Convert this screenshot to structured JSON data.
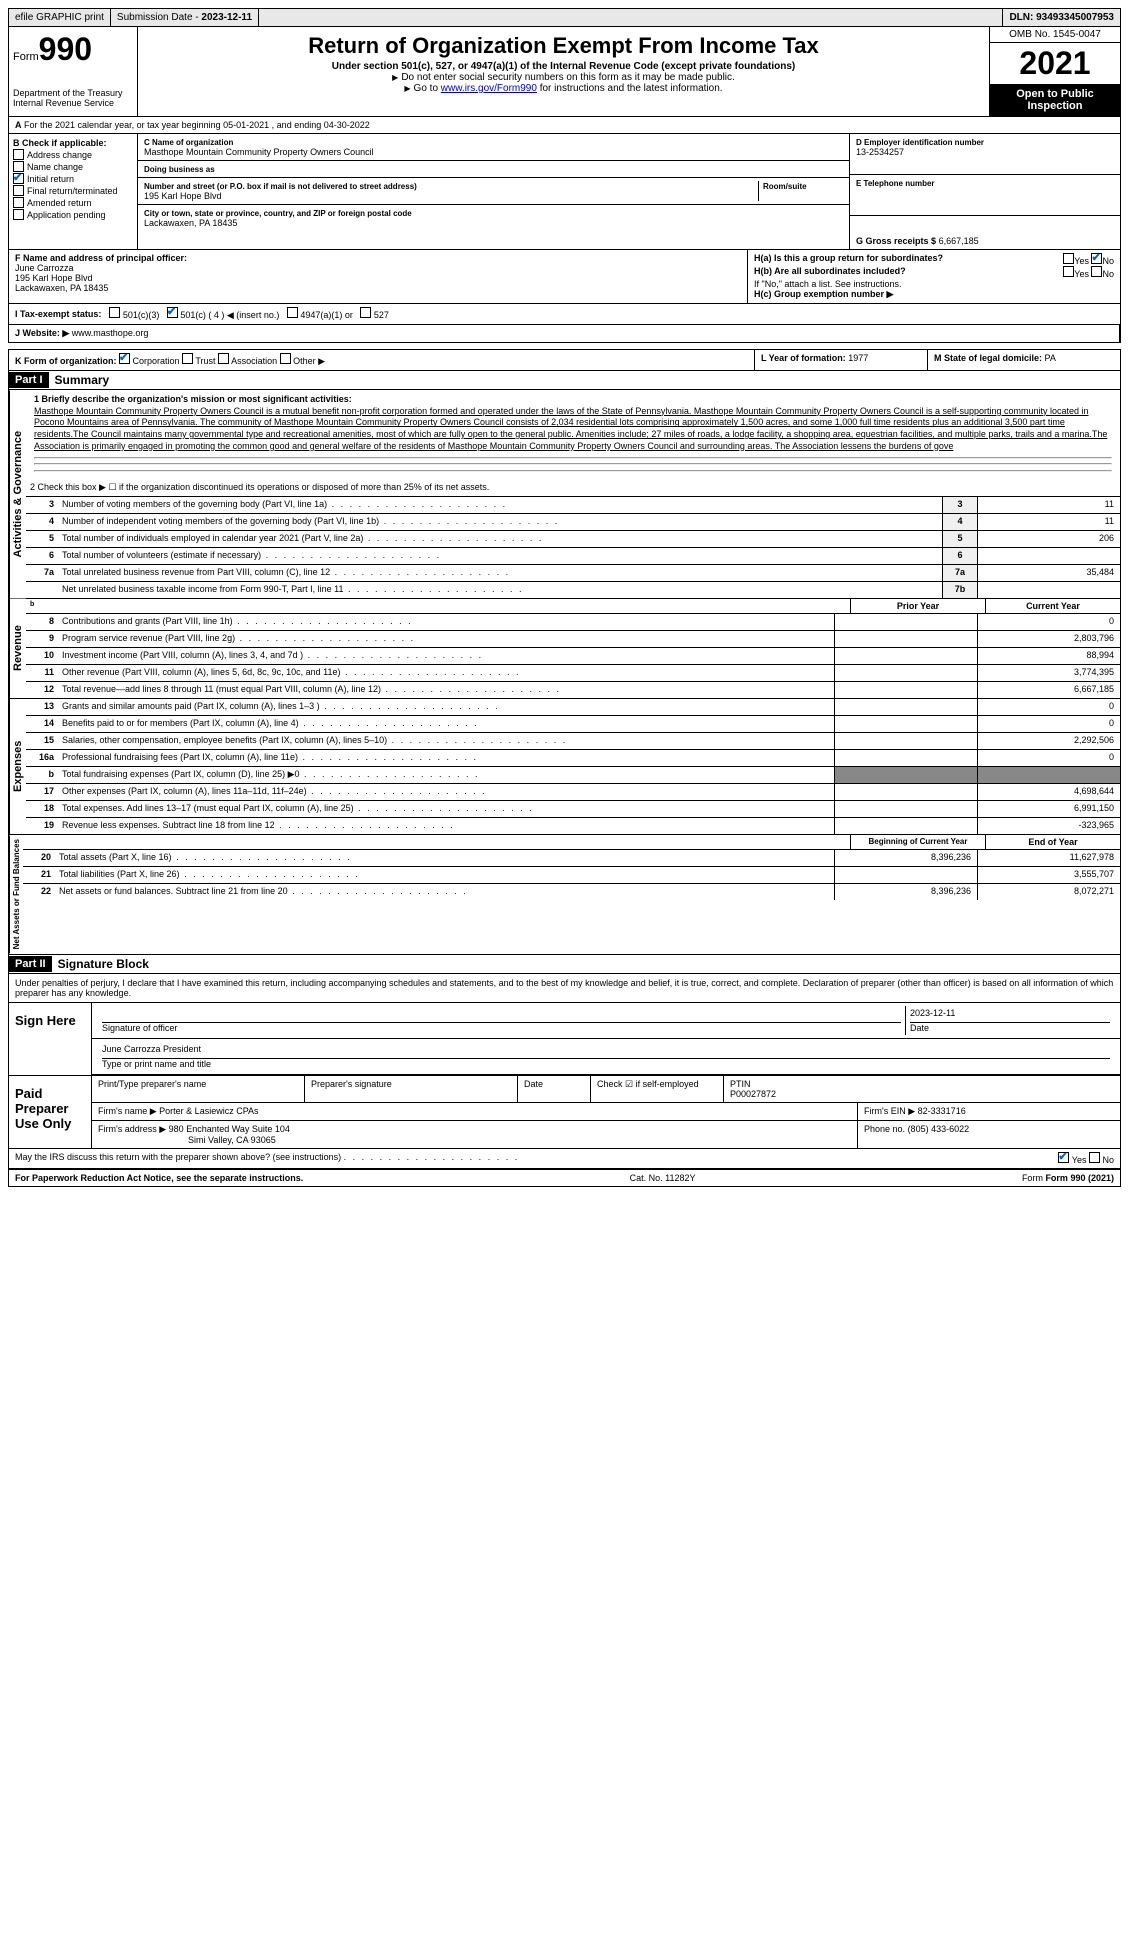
{
  "top": {
    "efile": "efile GRAPHIC print",
    "submission_label": "Submission Date - ",
    "submission_date": "2023-12-11",
    "dln_label": "DLN: ",
    "dln": "93493345007953"
  },
  "header": {
    "form_label": "Form",
    "form_num": "990",
    "dept": "Department of the Treasury",
    "irs": "Internal Revenue Service",
    "title": "Return of Organization Exempt From Income Tax",
    "subtitle": "Under section 501(c), 527, or 4947(a)(1) of the Internal Revenue Code (except private foundations)",
    "note1": "Do not enter social security numbers on this form as it may be made public.",
    "note2_pre": "Go to ",
    "note2_link": "www.irs.gov/Form990",
    "note2_post": " for instructions and the latest information.",
    "omb": "OMB No. 1545-0047",
    "year": "2021",
    "inspection": "Open to Public Inspection"
  },
  "section_a": "For the 2021 calendar year, or tax year beginning 05-01-2021  , and ending 04-30-2022",
  "section_b": {
    "label": "B Check if applicable:",
    "items": [
      "Address change",
      "Name change",
      "Initial return",
      "Final return/terminated",
      "Amended return",
      "Application pending"
    ],
    "checked_idx": 2
  },
  "section_c": {
    "name_label": "C Name of organization",
    "name": "Masthope Mountain Community Property Owners Council",
    "dba_label": "Doing business as",
    "dba": "",
    "street_label": "Number and street (or P.O. box if mail is not delivered to street address)",
    "street": "195 Karl Hope Blvd",
    "room_label": "Room/suite",
    "city_label": "City or town, state or province, country, and ZIP or foreign postal code",
    "city": "Lackawaxen, PA  18435"
  },
  "section_d": {
    "ein_label": "D Employer identification number",
    "ein": "13-2534257",
    "phone_label": "E Telephone number",
    "phone": "",
    "receipts_label": "G Gross receipts $",
    "receipts": "6,667,185"
  },
  "section_f": {
    "label": "F  Name and address of principal officer:",
    "name": "June Carrozza",
    "street": "195 Karl Hope Blvd",
    "city": "Lackawaxen, PA  18435"
  },
  "section_h": {
    "ha_label": "H(a)  Is this a group return for subordinates?",
    "ha_yes": "Yes",
    "ha_no": "No",
    "hb_label": "H(b)  Are all subordinates included?",
    "hb_note": "If \"No,\" attach a list. See instructions.",
    "hc_label": "H(c)  Group exemption number ▶"
  },
  "section_i": {
    "label": "I   Tax-exempt status:",
    "opts": [
      "501(c)(3)",
      "501(c) ( 4 ) ◀ (insert no.)",
      "4947(a)(1) or",
      "527"
    ],
    "checked_idx": 1
  },
  "section_j": {
    "label": "J   Website: ▶",
    "value": "www.masthope.org"
  },
  "section_k": {
    "label": "K Form of organization:",
    "opts": [
      "Corporation",
      "Trust",
      "Association",
      "Other ▶"
    ],
    "checked_idx": 0,
    "l_label": "L Year of formation:",
    "l_value": "1977",
    "m_label": "M State of legal domicile:",
    "m_value": "PA"
  },
  "part1": {
    "header": "Part I",
    "title": "Summary",
    "line1_label": "1   Briefly describe the organization's mission or most significant activities:",
    "mission": "Masthope Mountain Community Property Owners Council is a mutual benefit non-profit corporation formed and operated under the laws of the State of Pennsylvania. Masthope Mountain Community Property Owners Council is a self-supporting community located in Pocono Mountains area of Pennsylvania. The community of Masthope Mountain Community Property Owners Council consists of 2,034 residential lots comprising approximately 1,500 acres, and some 1,000 full time residents plus an additional 3,500 part time residents.The Council maintains many governmental type and recreational amenities, most of which are fully open to the general public. Amenities include; 27 miles of roads, a lodge facility, a shopping area, equestrian facilities, and multiple parks, trails and a marina.The Association is primarily engaged in promoting the common good and general welfare of the residents of Masthope Mountain Community Property Owners Council and surrounding areas. The Association lessens the burdens of gove",
    "line2": "2   Check this box ▶ ☐ if the organization discontinued its operations or disposed of more than 25% of its net assets.",
    "gov_label": "Activities & Governance",
    "rev_label": "Revenue",
    "exp_label": "Expenses",
    "net_label": "Net Assets or Fund Balances",
    "prior_year": "Prior Year",
    "current_year": "Current Year",
    "begin_year": "Beginning of Current Year",
    "end_year": "End of Year",
    "lines_gov": [
      {
        "n": "3",
        "d": "Number of voting members of the governing body (Part VI, line 1a)",
        "b": "3",
        "v": "11"
      },
      {
        "n": "4",
        "d": "Number of independent voting members of the governing body (Part VI, line 1b)",
        "b": "4",
        "v": "11"
      },
      {
        "n": "5",
        "d": "Total number of individuals employed in calendar year 2021 (Part V, line 2a)",
        "b": "5",
        "v": "206"
      },
      {
        "n": "6",
        "d": "Total number of volunteers (estimate if necessary)",
        "b": "6",
        "v": ""
      },
      {
        "n": "7a",
        "d": "Total unrelated business revenue from Part VIII, column (C), line 12",
        "b": "7a",
        "v": "35,484"
      },
      {
        "n": "",
        "d": "Net unrelated business taxable income from Form 990-T, Part I, line 11",
        "b": "7b",
        "v": ""
      }
    ],
    "lines_rev": [
      {
        "n": "8",
        "d": "Contributions and grants (Part VIII, line 1h)",
        "p": "",
        "c": "0"
      },
      {
        "n": "9",
        "d": "Program service revenue (Part VIII, line 2g)",
        "p": "",
        "c": "2,803,796"
      },
      {
        "n": "10",
        "d": "Investment income (Part VIII, column (A), lines 3, 4, and 7d )",
        "p": "",
        "c": "88,994"
      },
      {
        "n": "11",
        "d": "Other revenue (Part VIII, column (A), lines 5, 6d, 8c, 9c, 10c, and 11e)",
        "p": "",
        "c": "3,774,395"
      },
      {
        "n": "12",
        "d": "Total revenue—add lines 8 through 11 (must equal Part VIII, column (A), line 12)",
        "p": "",
        "c": "6,667,185"
      }
    ],
    "lines_exp": [
      {
        "n": "13",
        "d": "Grants and similar amounts paid (Part IX, column (A), lines 1–3 )",
        "p": "",
        "c": "0"
      },
      {
        "n": "14",
        "d": "Benefits paid to or for members (Part IX, column (A), line 4)",
        "p": "",
        "c": "0"
      },
      {
        "n": "15",
        "d": "Salaries, other compensation, employee benefits (Part IX, column (A), lines 5–10)",
        "p": "",
        "c": "2,292,506"
      },
      {
        "n": "16a",
        "d": "Professional fundraising fees (Part IX, column (A), line 11e)",
        "p": "",
        "c": "0"
      },
      {
        "n": "b",
        "d": "Total fundraising expenses (Part IX, column (D), line 25) ▶0",
        "p": "shaded",
        "c": "shaded"
      },
      {
        "n": "17",
        "d": "Other expenses (Part IX, column (A), lines 11a–11d, 11f–24e)",
        "p": "",
        "c": "4,698,644"
      },
      {
        "n": "18",
        "d": "Total expenses. Add lines 13–17 (must equal Part IX, column (A), line 25)",
        "p": "",
        "c": "6,991,150"
      },
      {
        "n": "19",
        "d": "Revenue less expenses. Subtract line 18 from line 12",
        "p": "",
        "c": "-323,965"
      }
    ],
    "lines_net": [
      {
        "n": "20",
        "d": "Total assets (Part X, line 16)",
        "p": "8,396,236",
        "c": "11,627,978"
      },
      {
        "n": "21",
        "d": "Total liabilities (Part X, line 26)",
        "p": "",
        "c": "3,555,707"
      },
      {
        "n": "22",
        "d": "Net assets or fund balances. Subtract line 21 from line 20",
        "p": "8,396,236",
        "c": "8,072,271"
      }
    ]
  },
  "part2": {
    "header": "Part II",
    "title": "Signature Block",
    "intro": "Under penalties of perjury, I declare that I have examined this return, including accompanying schedules and statements, and to the best of my knowledge and belief, it is true, correct, and complete. Declaration of preparer (other than officer) is based on all information of which preparer has any knowledge.",
    "sign_here": "Sign Here",
    "sig_officer": "Signature of officer",
    "sig_date_label": "Date",
    "sig_date": "2023-12-11",
    "officer_name": "June Carrozza President",
    "type_name": "Type or print name and title",
    "paid_prep": "Paid Preparer Use Only",
    "prep_name_label": "Print/Type preparer's name",
    "prep_sig_label": "Preparer's signature",
    "date_label": "Date",
    "check_label": "Check ☑ if self-employed",
    "ptin_label": "PTIN",
    "ptin": "P00027872",
    "firm_name_label": "Firm's name   ▶",
    "firm_name": "Porter & Lasiewicz CPAs",
    "firm_ein_label": "Firm's EIN ▶",
    "firm_ein": "82-3331716",
    "firm_addr_label": "Firm's address ▶",
    "firm_addr": "980 Enchanted Way Suite 104",
    "firm_city": "Simi Valley, CA  93065",
    "phone_label": "Phone no.",
    "phone": "(805) 433-6022",
    "discuss": "May the IRS discuss this return with the preparer shown above? (see instructions)",
    "yes": "Yes",
    "no": "No"
  },
  "footer": {
    "paperwork": "For Paperwork Reduction Act Notice, see the separate instructions.",
    "cat": "Cat. No. 11282Y",
    "form": "Form 990 (2021)"
  }
}
